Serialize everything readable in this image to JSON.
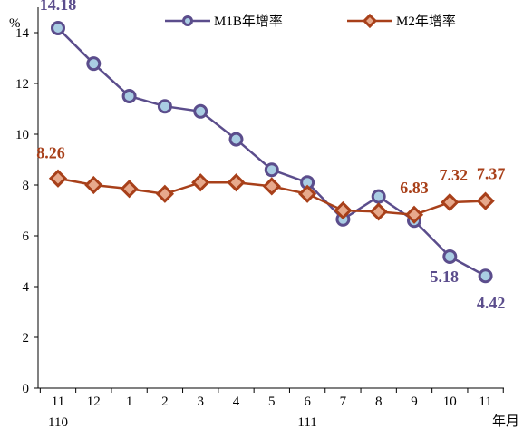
{
  "chart_data": {
    "type": "line",
    "y_unit": "%",
    "x_unit": "年月",
    "ylim": [
      0,
      15
    ],
    "yticks": [
      0,
      2,
      4,
      6,
      8,
      10,
      12,
      14
    ],
    "categories": [
      "11",
      "12",
      "1",
      "2",
      "3",
      "4",
      "5",
      "6",
      "7",
      "8",
      "9",
      "10",
      "11"
    ],
    "year_labels": [
      {
        "text": "110",
        "category_index": 0
      },
      {
        "text": "111",
        "category_index": 7
      }
    ],
    "grid": false,
    "legend_position": "top",
    "series": [
      {
        "name": "M1B年增率",
        "color": "#5b4d8c",
        "marker": "circle",
        "marker_fill": "#a9cde3",
        "values": [
          14.18,
          12.78,
          11.5,
          11.1,
          10.9,
          9.8,
          8.6,
          8.1,
          6.65,
          7.55,
          6.6,
          5.18,
          4.42
        ],
        "labels": [
          {
            "index": 0,
            "text": "14.18"
          },
          {
            "index": 11,
            "text": "5.18"
          },
          {
            "index": 12,
            "text": "4.42"
          }
        ]
      },
      {
        "name": "M2年增率",
        "color": "#a8401a",
        "marker": "diamond",
        "marker_fill": "#e7a98c",
        "values": [
          8.26,
          8.0,
          7.85,
          7.65,
          8.1,
          8.1,
          7.95,
          7.65,
          7.0,
          6.95,
          6.83,
          7.32,
          7.37
        ],
        "labels": [
          {
            "index": 0,
            "text": "8.26"
          },
          {
            "index": 10,
            "text": "6.83"
          },
          {
            "index": 11,
            "text": "7.32"
          },
          {
            "index": 12,
            "text": "7.37"
          }
        ]
      }
    ]
  }
}
